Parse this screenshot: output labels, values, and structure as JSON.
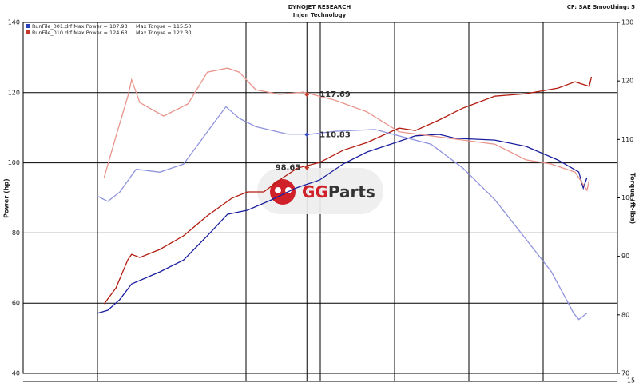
{
  "chart_data": {
    "type": "line",
    "title": "DYNOJET RESEARCH",
    "subtitle": "Injen Technology",
    "settings_text": "CF: SAE  Smoothing: 5",
    "ylabel": "Power (hp)",
    "y2label": "Torque (ft-lbs)",
    "xlim": [
      0,
      8
    ],
    "xticks": [
      1,
      3,
      3.82,
      4,
      5,
      6,
      7
    ],
    "ylim": [
      40,
      140
    ],
    "yticks": [
      40,
      60,
      80,
      100,
      120,
      140
    ],
    "y2lim": [
      70,
      130
    ],
    "y2ticks": [
      70,
      80,
      90,
      100,
      110,
      120,
      130
    ],
    "grid": true,
    "corner_label": "15",
    "legend": [
      {
        "text": "RunFile_001.drf Max Power = 107.93     Max Torque = 115.50",
        "color": "#2b3fb8"
      },
      {
        "text": "RunFile_010.drf Max Power = 124.63     Max Torque = 122.30",
        "color": "#c0392b"
      }
    ],
    "series": [
      {
        "color": "#b31c10",
        "axis": "y",
        "x": [
          1.09,
          1.25,
          1.41,
          1.46,
          1.57,
          1.84,
          2.16,
          2.48,
          2.81,
          3.02,
          3.24,
          3.45,
          3.69,
          3.99,
          4.31,
          4.63,
          5.06,
          5.28,
          5.6,
          5.92,
          6.35,
          6.77,
          7.2,
          7.43,
          7.62,
          7.65
        ],
        "values": [
          59.8,
          64.4,
          72.4,
          73.9,
          73.0,
          75.3,
          79.2,
          84.9,
          89.9,
          91.7,
          91.7,
          95.1,
          98.5,
          100.1,
          103.6,
          105.8,
          109.9,
          109.2,
          112.2,
          115.6,
          119.0,
          119.7,
          121.3,
          123.1,
          121.8,
          124.5
        ]
      },
      {
        "color": "#1a1f9e",
        "axis": "y",
        "x": [
          1.0,
          1.14,
          1.3,
          1.46,
          1.84,
          2.16,
          2.48,
          2.75,
          3.02,
          3.34,
          3.67,
          3.99,
          4.31,
          4.63,
          4.96,
          5.28,
          5.6,
          5.82,
          6.35,
          6.77,
          7.2,
          7.48,
          7.54,
          7.59
        ],
        "values": [
          57.1,
          58.0,
          61.0,
          65.5,
          68.9,
          72.3,
          79.2,
          85.3,
          86.5,
          89.4,
          92.8,
          95.1,
          99.7,
          103.1,
          105.4,
          107.7,
          108.1,
          107.0,
          106.5,
          104.7,
          100.8,
          97.4,
          92.8,
          95.8
        ]
      },
      {
        "color": "#e8958c",
        "axis": "y2",
        "x": [
          1.09,
          1.25,
          1.41,
          1.46,
          1.57,
          1.89,
          2.22,
          2.48,
          2.75,
          2.91,
          3.13,
          3.45,
          3.77,
          4.2,
          4.63,
          5.06,
          5.49,
          5.92,
          6.35,
          6.77,
          7.11,
          7.43,
          7.59,
          7.62
        ],
        "values": [
          103.5,
          110.6,
          117.4,
          120.2,
          116.3,
          114.0,
          116.1,
          121.5,
          122.2,
          121.5,
          118.5,
          117.7,
          118.1,
          116.7,
          114.7,
          111.3,
          110.6,
          109.9,
          109.2,
          106.5,
          105.8,
          104.4,
          101.3,
          103.1
        ]
      },
      {
        "color": "#8f93dd",
        "axis": "y2",
        "x": [
          1.0,
          1.14,
          1.3,
          1.52,
          1.84,
          2.16,
          2.48,
          2.73,
          2.91,
          3.13,
          3.56,
          3.88,
          4.2,
          4.74,
          5.06,
          5.49,
          5.92,
          6.35,
          6.77,
          7.11,
          7.41,
          7.48,
          7.59
        ],
        "values": [
          100.3,
          99.4,
          101.0,
          104.9,
          104.4,
          105.8,
          111.3,
          115.6,
          113.6,
          112.2,
          110.9,
          110.9,
          111.4,
          111.7,
          110.6,
          109.2,
          105.1,
          99.7,
          92.9,
          87.4,
          80.3,
          79.2,
          80.3
        ]
      }
    ],
    "annotations": [
      {
        "value": 117.69,
        "x": 3.82,
        "axis": "y2",
        "color": "#c0392b"
      },
      {
        "value": 110.83,
        "x": 3.82,
        "axis": "y2",
        "color": "#3f4fc4"
      },
      {
        "value": 98.65,
        "x": 3.82,
        "axis": "y",
        "color": "#c0392b"
      }
    ],
    "watermark": {
      "brand_a": "GG",
      "brand_b": "Parts"
    }
  }
}
